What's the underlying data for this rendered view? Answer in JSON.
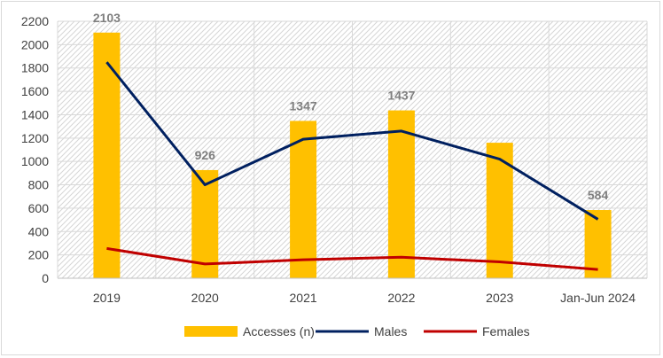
{
  "chart_data": {
    "type": "bar",
    "title": "",
    "xlabel": "",
    "ylabel": "",
    "categories": [
      "2019",
      "2020",
      "2021",
      "2022",
      "2023",
      "Jan-Jun 2024"
    ],
    "ylim": [
      0,
      2200
    ],
    "ytick_step": 200,
    "grid": true,
    "legend_position": "bottom",
    "series": [
      {
        "name": "Accesses (n)",
        "kind": "bar",
        "color": "#ffc000",
        "values": [
          2103,
          926,
          1347,
          1437,
          1160,
          584
        ],
        "labels": [
          "2103",
          "926",
          "1347",
          "1437",
          "",
          "584"
        ]
      },
      {
        "name": "Males",
        "kind": "line",
        "color": "#002060",
        "values": [
          1850,
          800,
          1190,
          1260,
          1020,
          505
        ]
      },
      {
        "name": "Females",
        "kind": "line",
        "color": "#c00000",
        "values": [
          255,
          122,
          158,
          180,
          140,
          75
        ]
      }
    ]
  }
}
